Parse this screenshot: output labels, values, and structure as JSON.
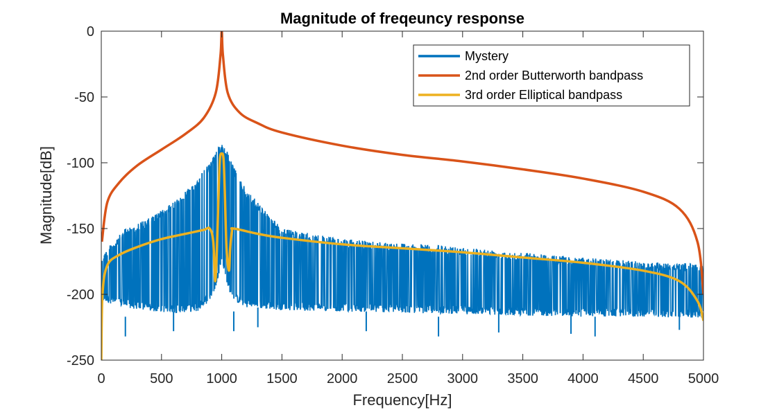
{
  "chart_data": {
    "type": "line",
    "title": "Magnitude of freqeuncy response",
    "xlabel": "Frequency[Hz]",
    "ylabel": "Magnitude[dB]",
    "xlim": [
      0,
      5000
    ],
    "ylim": [
      -250,
      0
    ],
    "x_ticks": [
      "0",
      "500",
      "1000",
      "1500",
      "2000",
      "2500",
      "3000",
      "3500",
      "4000",
      "4500",
      "5000"
    ],
    "y_ticks": [
      "0",
      "-50",
      "-100",
      "-150",
      "-200",
      "-250"
    ],
    "grid": false,
    "legend_position": "top-right",
    "series": [
      {
        "name": "Mystery",
        "color": "#0072BD",
        "style": "noisy-band",
        "envelope_x": [
          0,
          200,
          400,
          600,
          800,
          900,
          950,
          1000,
          1050,
          1100,
          1200,
          1500,
          2000,
          2500,
          3000,
          3500,
          4000,
          4500,
          5000
        ],
        "upper": [
          -170,
          -150,
          -142,
          -130,
          -112,
          -100,
          -90,
          -86,
          -92,
          -103,
          -120,
          -150,
          -158,
          -161,
          -164,
          -168,
          -172,
          -175,
          -177
        ],
        "lower": [
          -205,
          -210,
          -213,
          -214,
          -213,
          -205,
          -195,
          -175,
          -195,
          -205,
          -210,
          -212,
          -213,
          -214,
          -215,
          -216,
          -217,
          -217,
          -218
        ],
        "dips": [
          [
            200,
            -232
          ],
          [
            600,
            -228
          ],
          [
            1100,
            -228
          ],
          [
            1300,
            -225
          ],
          [
            2200,
            -228
          ],
          [
            2800,
            -232
          ],
          [
            3300,
            -229
          ],
          [
            3900,
            -230
          ],
          [
            4100,
            -232
          ],
          [
            4800,
            -227
          ]
        ]
      },
      {
        "name": "2nd order Butterworth bandpass",
        "color": "#D95319",
        "points": [
          [
            5,
            -160
          ],
          [
            50,
            -130
          ],
          [
            150,
            -115
          ],
          [
            300,
            -102
          ],
          [
            500,
            -90
          ],
          [
            700,
            -78
          ],
          [
            850,
            -66
          ],
          [
            950,
            -47
          ],
          [
            990,
            -18
          ],
          [
            1000,
            0
          ],
          [
            1010,
            -18
          ],
          [
            1050,
            -47
          ],
          [
            1150,
            -62
          ],
          [
            1300,
            -70
          ],
          [
            1500,
            -77
          ],
          [
            2000,
            -87
          ],
          [
            2500,
            -94
          ],
          [
            3000,
            -99
          ],
          [
            3500,
            -105
          ],
          [
            4000,
            -112
          ],
          [
            4500,
            -122
          ],
          [
            4800,
            -135
          ],
          [
            4950,
            -160
          ],
          [
            5000,
            -200
          ]
        ]
      },
      {
        "name": "3rd order Elliptical bandpass",
        "color": "#EDB120",
        "points": [
          [
            0,
            -250
          ],
          [
            10,
            -200
          ],
          [
            50,
            -178
          ],
          [
            150,
            -170
          ],
          [
            300,
            -164
          ],
          [
            500,
            -158
          ],
          [
            700,
            -154
          ],
          [
            850,
            -151
          ],
          [
            900,
            -150
          ],
          [
            930,
            -160
          ],
          [
            945,
            -190
          ],
          [
            960,
            -165
          ],
          [
            975,
            -120
          ],
          [
            985,
            -97
          ],
          [
            1000,
            -93
          ],
          [
            1015,
            -97
          ],
          [
            1025,
            -120
          ],
          [
            1040,
            -165
          ],
          [
            1060,
            -182
          ],
          [
            1070,
            -165
          ],
          [
            1085,
            -152
          ],
          [
            1100,
            -150
          ],
          [
            1300,
            -154
          ],
          [
            1500,
            -157
          ],
          [
            2000,
            -162
          ],
          [
            2500,
            -165
          ],
          [
            3000,
            -168
          ],
          [
            3500,
            -172
          ],
          [
            4000,
            -176
          ],
          [
            4500,
            -182
          ],
          [
            4800,
            -190
          ],
          [
            4950,
            -205
          ],
          [
            5000,
            -220
          ]
        ]
      }
    ]
  }
}
